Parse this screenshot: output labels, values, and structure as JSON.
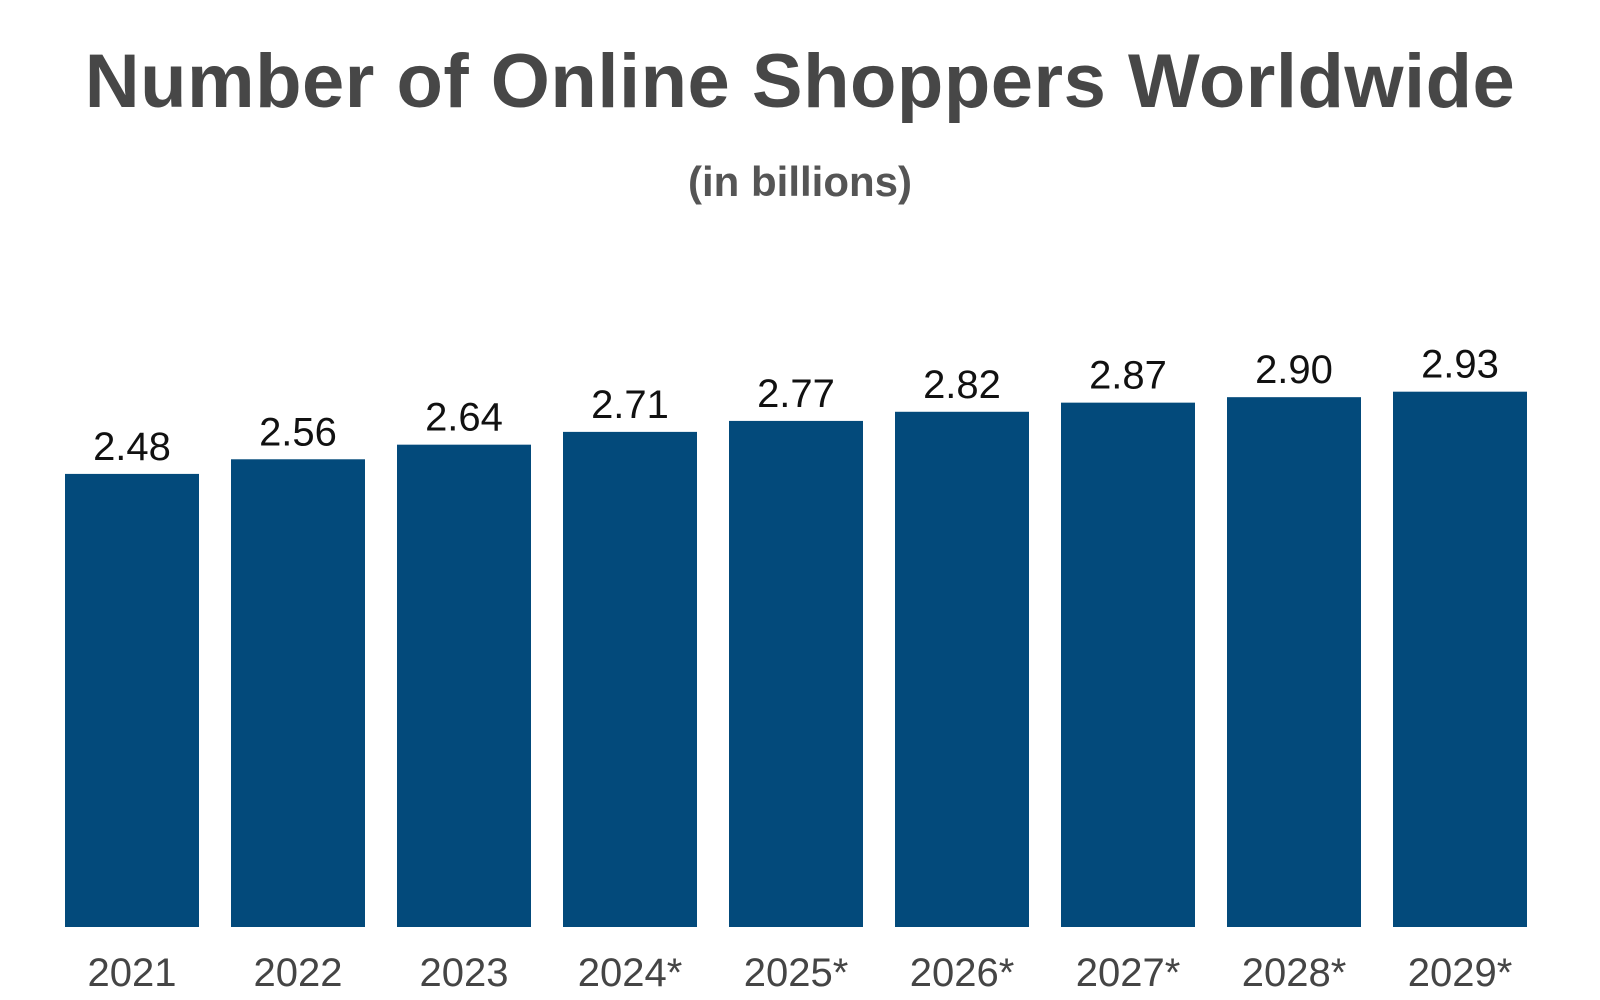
{
  "chart_data": {
    "type": "bar",
    "title": "Number of Online Shoppers Worldwide",
    "subtitle": "(in billions)",
    "categories": [
      "2021",
      "2022",
      "2023",
      "2024*",
      "2025*",
      "2026*",
      "2027*",
      "2028*",
      "2029*"
    ],
    "values": [
      2.48,
      2.56,
      2.64,
      2.71,
      2.77,
      2.82,
      2.87,
      2.9,
      2.93
    ],
    "value_labels": [
      "2.48",
      "2.56",
      "2.64",
      "2.71",
      "2.77",
      "2.82",
      "2.87",
      "2.90",
      "2.93"
    ],
    "xlabel": "",
    "ylabel": "",
    "ylim": [
      0,
      3.0
    ],
    "grid": false,
    "legend": "none",
    "bar_color": "#034a7b"
  }
}
